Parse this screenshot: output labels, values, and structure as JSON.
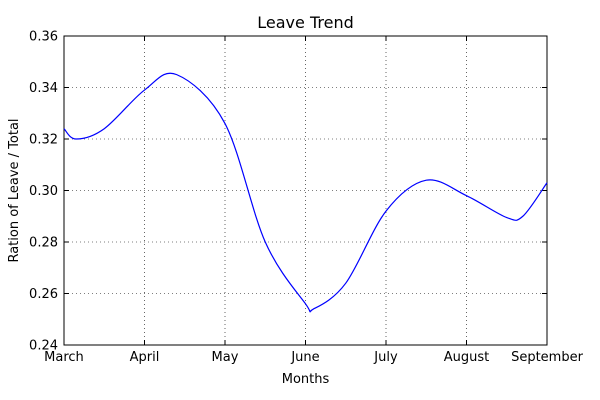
{
  "chart_data": {
    "type": "line",
    "title": "Leave Trend",
    "xlabel": "Months",
    "ylabel": "Ration of Leave / Total",
    "categories": [
      "March",
      "April",
      "May",
      "June",
      "July",
      "August",
      "September"
    ],
    "ylim": [
      0.24,
      0.36
    ],
    "yticks": [
      "0.24",
      "0.26",
      "0.28",
      "0.30",
      "0.32",
      "0.34",
      "0.36"
    ],
    "grid": true,
    "series": [
      {
        "color": "#0000ff",
        "x": [
          0.0,
          0.15,
          0.5,
          1.0,
          1.4,
          2.0,
          2.5,
          3.0,
          3.1,
          3.5,
          4.0,
          4.5,
          5.0,
          5.5,
          5.7,
          6.0
        ],
        "values": [
          0.324,
          0.32,
          0.324,
          0.339,
          0.345,
          0.326,
          0.28,
          0.256,
          0.254,
          0.264,
          0.292,
          0.304,
          0.298,
          0.2895,
          0.29,
          0.303
        ]
      }
    ]
  }
}
